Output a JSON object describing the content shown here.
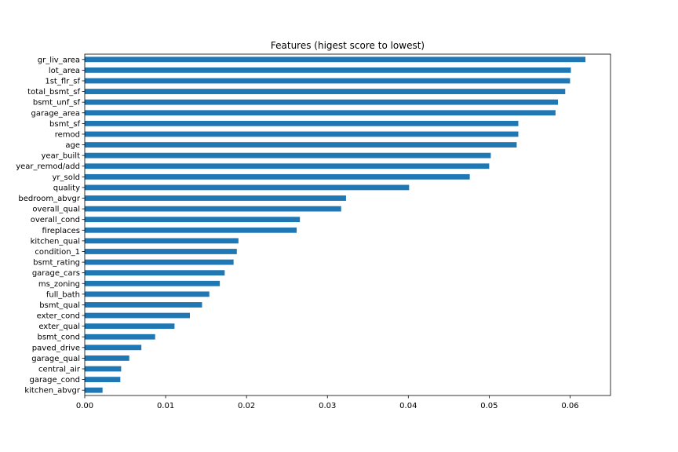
{
  "chart_data": {
    "type": "bar",
    "orientation": "horizontal",
    "title": "Features (higest score to lowest)",
    "xlabel": "",
    "ylabel": "",
    "xlim": [
      0,
      0.065
    ],
    "x_ticks": [
      "0.00",
      "0.01",
      "0.02",
      "0.03",
      "0.04",
      "0.05",
      "0.06"
    ],
    "x_tick_values": [
      0,
      0.01,
      0.02,
      0.03,
      0.04,
      0.05,
      0.06
    ],
    "grid": false,
    "legend": "none",
    "bar_color": "#1f77b4",
    "categories": [
      "gr_liv_area",
      "lot_area",
      "1st_flr_sf",
      "total_bsmt_sf",
      "bsmt_unf_sf",
      "garage_area",
      "bsmt_sf",
      "remod",
      "age",
      "year_built",
      "year_remod/add",
      "yr_sold",
      "quality",
      "bedroom_abvgr",
      "overall_qual",
      "overall_cond",
      "fireplaces",
      "kitchen_qual",
      "condition_1",
      "bsmt_rating",
      "garage_cars",
      "ms_zoning",
      "full_bath",
      "bsmt_qual",
      "exter_cond",
      "exter_qual",
      "bsmt_cond",
      "paved_drive",
      "garage_qual",
      "central_air",
      "garage_cond",
      "kitchen_abvgr"
    ],
    "values": [
      0.0619,
      0.0601,
      0.06,
      0.0594,
      0.0585,
      0.0582,
      0.0536,
      0.0536,
      0.0534,
      0.0502,
      0.05,
      0.0476,
      0.0401,
      0.0323,
      0.0317,
      0.0266,
      0.0262,
      0.019,
      0.0188,
      0.0184,
      0.0173,
      0.0167,
      0.0154,
      0.0145,
      0.013,
      0.0111,
      0.0087,
      0.007,
      0.0055,
      0.0045,
      0.0044,
      0.0022
    ]
  }
}
